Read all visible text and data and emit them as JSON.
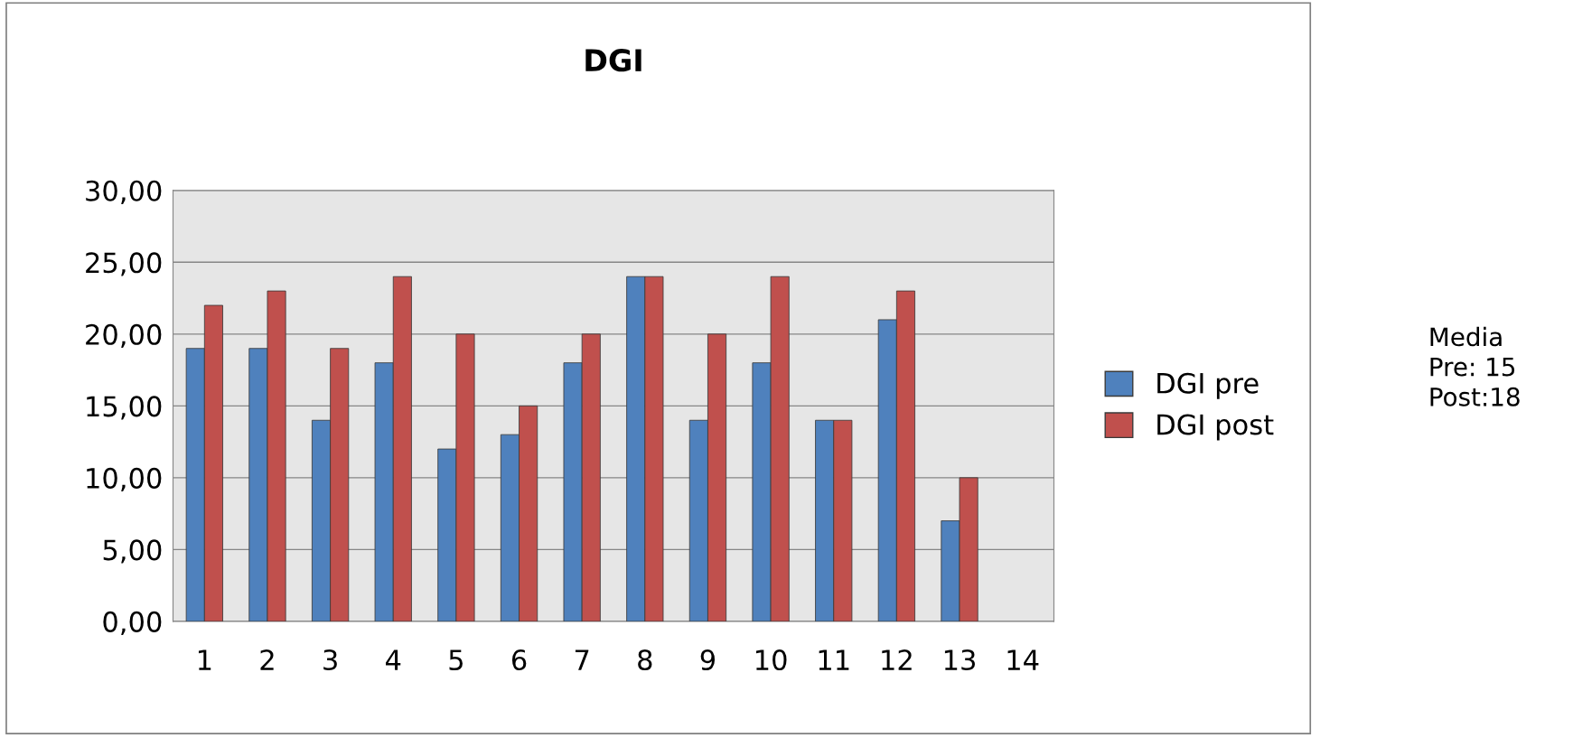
{
  "chart_data": {
    "type": "bar",
    "title": "DGI",
    "categories": [
      "1",
      "2",
      "3",
      "4",
      "5",
      "6",
      "7",
      "8",
      "9",
      "10",
      "11",
      "12",
      "13",
      "14"
    ],
    "series": [
      {
        "name": "DGI pre",
        "color": "#4f81bd",
        "values": [
          19,
          19,
          14,
          18,
          12,
          13,
          18,
          24,
          14,
          18,
          14,
          21,
          7,
          null
        ]
      },
      {
        "name": "DGI post",
        "color": "#c0504d",
        "values": [
          22,
          23,
          19,
          24,
          20,
          15,
          20,
          24,
          20,
          24,
          14,
          23,
          10,
          null
        ]
      }
    ],
    "ylim": [
      0,
      30
    ],
    "yticks": [
      {
        "value": 0,
        "label": "0,00"
      },
      {
        "value": 5,
        "label": "5,00"
      },
      {
        "value": 10,
        "label": "10,00"
      },
      {
        "value": 15,
        "label": "15,00"
      },
      {
        "value": 20,
        "label": "20,00"
      },
      {
        "value": 25,
        "label": "25,00"
      },
      {
        "value": 30,
        "label": "30,00"
      }
    ],
    "grid": "y",
    "legend": "right",
    "annotations": [
      "Media\nPre: 15\nPost:18"
    ]
  }
}
